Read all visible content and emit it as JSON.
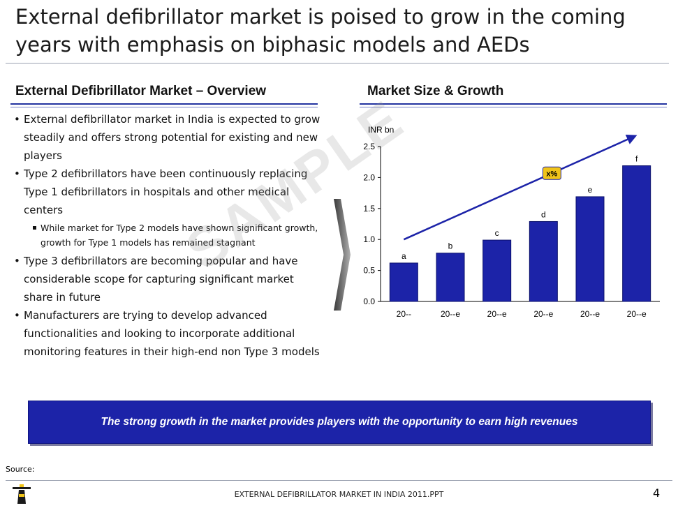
{
  "header": {
    "title": "External defibrillator market is poised to grow in the coming years with emphasis on biphasic models and AEDs"
  },
  "left_section": {
    "heading": "External Defibrillator Market – Overview",
    "bullets": [
      {
        "text": "External defibrillator market in India is expected to grow steadily and offers strong potential for existing and new players"
      },
      {
        "text": "Type 2 defibrillators have been continuously replacing Type 1 defibrillators in hospitals and other medical centers"
      },
      {
        "text": "While market for Type 2 models have shown significant growth, growth for Type 1 models has remained stagnant",
        "sub": true
      },
      {
        "text": "Type 3 defibrillators are becoming popular and have considerable scope for capturing significant market share in future"
      },
      {
        "text": "Manufacturers are trying to develop advanced functionalities and looking to incorporate additional monitoring features in their high-end non Type 3 models"
      }
    ]
  },
  "right_section": {
    "heading": "Market Size & Growth"
  },
  "watermark": "SAMPLE",
  "chart_data": {
    "type": "bar",
    "ylabel": "INR bn",
    "ylim": [
      0,
      2.5
    ],
    "yticks": [
      "0.0",
      "0.5",
      "1.0",
      "1.5",
      "2.0",
      "2.5"
    ],
    "categories": [
      "20--",
      "20--e",
      "20--e",
      "20--e",
      "20--e",
      "20--e"
    ],
    "values": [
      0.62,
      0.78,
      0.99,
      1.29,
      1.69,
      2.19
    ],
    "data_labels": [
      "a",
      "b",
      "c",
      "d",
      "e",
      "f"
    ],
    "growth_label": "x%",
    "bar_color": "#1c23a8",
    "arrow_color": "#1c23a8",
    "growth_badge_color": "#f0c419"
  },
  "banner": {
    "text": "The strong growth in the market provides players with the opportunity to earn high revenues"
  },
  "footer": {
    "source_label": "Source:",
    "file_name": "EXTERNAL DEFIBRILLATOR MARKET IN INDIA 2011.PPT",
    "page_number": "4"
  }
}
